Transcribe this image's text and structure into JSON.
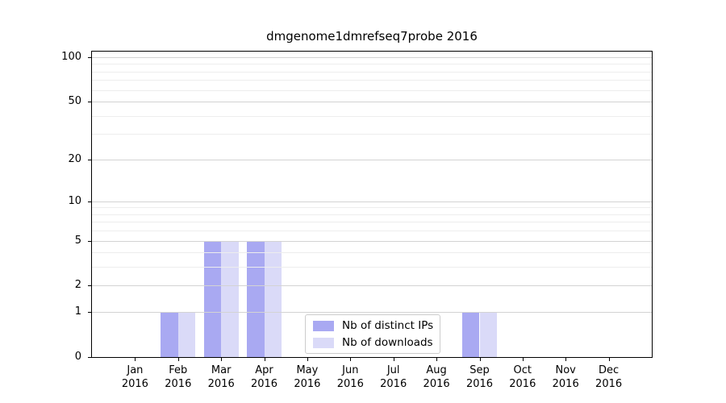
{
  "chart_data": {
    "type": "bar",
    "title": "dmgenome1dmrefseq7probe 2016",
    "x_categories_line1": [
      "Jan",
      "Feb",
      "Mar",
      "Apr",
      "May",
      "Jun",
      "Jul",
      "Aug",
      "Sep",
      "Oct",
      "Nov",
      "Dec"
    ],
    "x_categories_line2": "2016",
    "series": [
      {
        "name": "Nb of distinct IPs",
        "color": "#a9a9f2",
        "values": [
          0,
          1,
          5,
          5,
          0,
          0,
          0,
          0,
          1,
          0,
          0,
          0
        ]
      },
      {
        "name": "Nb of downloads",
        "color": "#dadaf8",
        "values": [
          0,
          1,
          5,
          5,
          0,
          0,
          0,
          0,
          1,
          0,
          0,
          0
        ]
      }
    ],
    "y_axis": {
      "scale": "log10(1+y)",
      "major_ticks": [
        0,
        1,
        2,
        5,
        10,
        20,
        50,
        100
      ],
      "minor_gridlines": [
        3,
        4,
        6,
        7,
        8,
        9,
        30,
        40,
        60,
        70,
        80,
        90
      ],
      "max": 109
    },
    "xlabel": "",
    "ylabel": "",
    "grid": true,
    "legend_position": "lower-center"
  },
  "style": {
    "bar_color_distinct_ips": "#a9a9f2",
    "bar_color_downloads": "#dadaf8",
    "grid_major_color": "#d3d3d3",
    "grid_minor_color": "#ededed",
    "spine_color": "#000000",
    "background": "#ffffff"
  }
}
